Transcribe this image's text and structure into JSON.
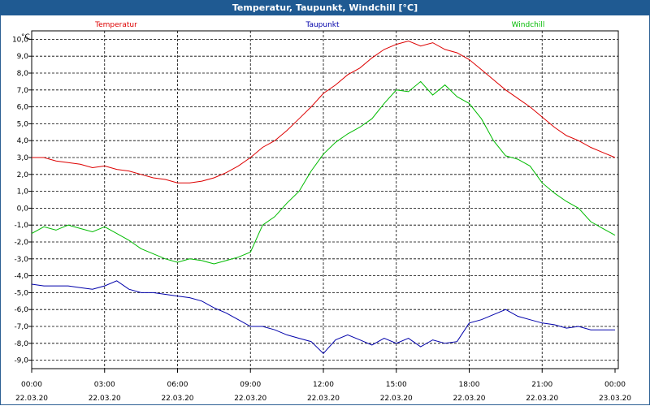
{
  "window": {
    "title": "Temperatur, Taupunkt, Windchill [°C]"
  },
  "chart_data": {
    "type": "line",
    "title": "Temperatur, Taupunkt, Windchill [°C]",
    "ylabel": "°C",
    "ylim": [
      -9.5,
      10.5
    ],
    "yticks": [
      10,
      9,
      8,
      7,
      6,
      5,
      4,
      3,
      2,
      1,
      0,
      -1,
      -2,
      -3,
      -4,
      -5,
      -6,
      -7,
      -8,
      -9
    ],
    "ytick_labels": [
      "10,0",
      "9,0",
      "8,0",
      "7,0",
      "6,0",
      "5,0",
      "4,0",
      "3,0",
      "2,0",
      "1,0",
      "0,0",
      "-1,0",
      "-2,0",
      "-3,0",
      "-4,0",
      "-5,0",
      "-6,0",
      "-7,0",
      "-8,0",
      "-9,0"
    ],
    "xlim": [
      0,
      24
    ],
    "xticks": [
      0,
      3,
      6,
      9,
      12,
      15,
      18,
      21,
      24
    ],
    "xtick_time_labels": [
      "00:00",
      "03:00",
      "06:00",
      "09:00",
      "12:00",
      "15:00",
      "18:00",
      "21:00",
      "00:00"
    ],
    "xtick_date_labels": [
      "22.03.20",
      "22.03.20",
      "22.03.20",
      "22.03.20",
      "22.03.20",
      "22.03.20",
      "22.03.20",
      "22.03.20",
      "23.03.20"
    ],
    "grid": true,
    "legend_position": "top",
    "series": [
      {
        "name": "Temperatur",
        "color": "#dd0000",
        "x": [
          0,
          0.5,
          1,
          1.5,
          2,
          2.5,
          3,
          3.5,
          4,
          4.5,
          5,
          5.5,
          6,
          6.5,
          7,
          7.5,
          8,
          8.5,
          9,
          9.5,
          10,
          10.5,
          11,
          11.5,
          12,
          12.5,
          13,
          13.5,
          14,
          14.5,
          15,
          15.5,
          16,
          16.5,
          17,
          17.5,
          18,
          18.5,
          19,
          19.5,
          20,
          20.5,
          21,
          21.5,
          22,
          22.5,
          23,
          23.5,
          24
        ],
        "values": [
          3.0,
          3.0,
          2.8,
          2.7,
          2.6,
          2.4,
          2.5,
          2.3,
          2.2,
          2.0,
          1.8,
          1.7,
          1.5,
          1.5,
          1.6,
          1.8,
          2.1,
          2.5,
          3.0,
          3.6,
          4.0,
          4.6,
          5.3,
          6.0,
          6.8,
          7.3,
          7.9,
          8.3,
          8.9,
          9.4,
          9.7,
          9.9,
          9.6,
          9.8,
          9.4,
          9.2,
          8.8,
          8.2,
          7.6,
          7.0,
          6.5,
          6.0,
          5.4,
          4.8,
          4.3,
          4.0,
          3.6,
          3.3,
          3.0
        ]
      },
      {
        "name": "Taupunkt",
        "color": "#0000aa",
        "x": [
          0,
          0.5,
          1,
          1.5,
          2,
          2.5,
          3,
          3.5,
          4,
          4.5,
          5,
          5.5,
          6,
          6.5,
          7,
          7.5,
          8,
          8.5,
          9,
          9.5,
          10,
          10.5,
          11,
          11.5,
          12,
          12.5,
          13,
          13.5,
          14,
          14.5,
          15,
          15.5,
          16,
          16.5,
          17,
          17.5,
          18,
          18.5,
          19,
          19.5,
          20,
          20.5,
          21,
          21.5,
          22,
          22.5,
          23,
          23.5,
          24
        ],
        "values": [
          -4.5,
          -4.6,
          -4.6,
          -4.6,
          -4.7,
          -4.8,
          -4.6,
          -4.3,
          -4.8,
          -5.0,
          -5.0,
          -5.1,
          -5.2,
          -5.3,
          -5.5,
          -5.9,
          -6.2,
          -6.6,
          -7.0,
          -7.0,
          -7.2,
          -7.5,
          -7.7,
          -7.9,
          -8.6,
          -7.8,
          -7.5,
          -7.8,
          -8.1,
          -7.7,
          -8.0,
          -7.7,
          -8.2,
          -7.8,
          -8.0,
          -7.9,
          -6.8,
          -6.6,
          -6.3,
          -6.0,
          -6.4,
          -6.6,
          -6.8,
          -6.9,
          -7.1,
          -7.0,
          -7.2,
          -7.2,
          -7.2
        ]
      },
      {
        "name": "Windchill",
        "color": "#00bb00",
        "x": [
          0,
          0.5,
          1,
          1.5,
          2,
          2.5,
          3,
          3.5,
          4,
          4.5,
          5,
          5.5,
          6,
          6.5,
          7,
          7.5,
          8,
          8.5,
          9,
          9.5,
          10,
          10.5,
          11,
          11.5,
          12,
          12.5,
          13,
          13.5,
          14,
          14.5,
          15,
          15.5,
          16,
          16.5,
          17,
          17.5,
          18,
          18.5,
          19,
          19.5,
          20,
          20.5,
          21,
          21.5,
          22,
          22.5,
          23,
          23.5,
          24
        ],
        "values": [
          -1.5,
          -1.1,
          -1.3,
          -1.0,
          -1.2,
          -1.4,
          -1.1,
          -1.5,
          -1.9,
          -2.4,
          -2.7,
          -3.0,
          -3.2,
          -3.0,
          -3.1,
          -3.3,
          -3.1,
          -2.9,
          -2.6,
          -1.0,
          -0.5,
          0.3,
          1.0,
          2.2,
          3.2,
          3.9,
          4.4,
          4.8,
          5.3,
          6.2,
          7.0,
          6.9,
          7.5,
          6.7,
          7.3,
          6.6,
          6.2,
          5.3,
          4.0,
          3.1,
          2.9,
          2.5,
          1.5,
          0.9,
          0.4,
          0.0,
          -0.8,
          -1.2,
          -1.6
        ]
      }
    ]
  }
}
